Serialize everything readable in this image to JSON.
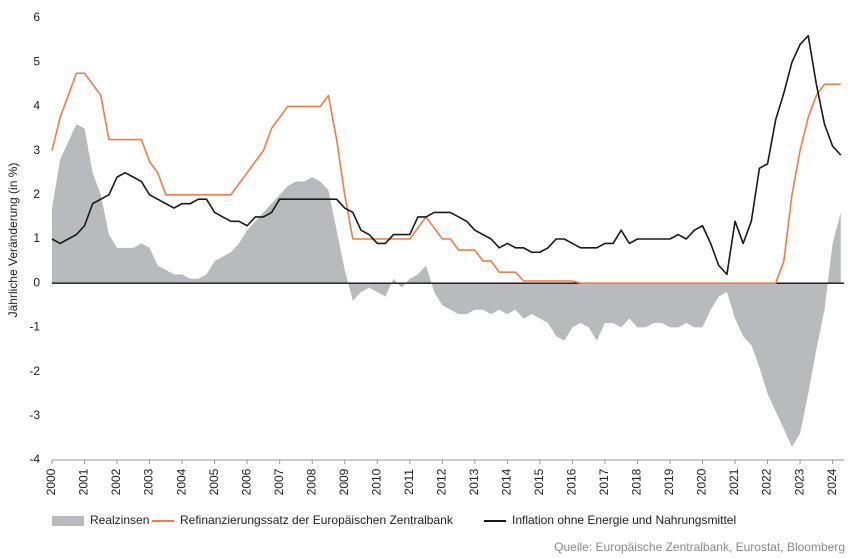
{
  "chart_data": {
    "type": "line",
    "y_label": "Jährliche Veränderung (in %)",
    "source": "Quelle: Europäische Zentralbank, Eurostat, Bloomberg",
    "x": [
      2000,
      2000.25,
      2000.5,
      2000.75,
      2001,
      2001.25,
      2001.5,
      2001.75,
      2002,
      2002.25,
      2002.5,
      2002.75,
      2003,
      2003.25,
      2003.5,
      2003.75,
      2004,
      2004.25,
      2004.5,
      2004.75,
      2005,
      2005.25,
      2005.5,
      2005.75,
      2006,
      2006.25,
      2006.5,
      2006.75,
      2007,
      2007.25,
      2007.5,
      2007.75,
      2008,
      2008.25,
      2008.5,
      2008.75,
      2009,
      2009.25,
      2009.5,
      2009.75,
      2010,
      2010.25,
      2010.5,
      2010.75,
      2011,
      2011.25,
      2011.5,
      2011.75,
      2012,
      2012.25,
      2012.5,
      2012.75,
      2013,
      2013.25,
      2013.5,
      2013.75,
      2014,
      2014.25,
      2014.5,
      2014.75,
      2015,
      2015.25,
      2015.5,
      2015.75,
      2016,
      2016.25,
      2016.5,
      2016.75,
      2017,
      2017.25,
      2017.5,
      2017.75,
      2018,
      2018.25,
      2018.5,
      2018.75,
      2019,
      2019.25,
      2019.5,
      2019.75,
      2020,
      2020.25,
      2020.5,
      2020.75,
      2021,
      2021.25,
      2021.5,
      2021.75,
      2022,
      2022.25,
      2022.5,
      2022.75,
      2023,
      2023.25,
      2023.5,
      2023.75,
      2024,
      2024.25
    ],
    "series": [
      {
        "name": "Realzinsen",
        "kind": "area",
        "color": "#b9babd",
        "values": [
          1.7,
          2.8,
          3.2,
          3.6,
          3.5,
          2.5,
          2.0,
          1.1,
          0.8,
          0.8,
          0.8,
          0.9,
          0.8,
          0.4,
          0.3,
          0.2,
          0.2,
          0.1,
          0.1,
          0.2,
          0.5,
          0.6,
          0.7,
          0.9,
          1.2,
          1.4,
          1.6,
          1.8,
          2.0,
          2.2,
          2.3,
          2.3,
          2.4,
          2.3,
          2.1,
          1.2,
          0.3,
          -0.4,
          -0.2,
          -0.1,
          -0.2,
          -0.3,
          0.1,
          -0.1,
          0.1,
          0.2,
          0.4,
          -0.2,
          -0.5,
          -0.6,
          -0.7,
          -0.7,
          -0.6,
          -0.6,
          -0.7,
          -0.6,
          -0.7,
          -0.6,
          -0.8,
          -0.7,
          -0.8,
          -0.9,
          -1.2,
          -1.3,
          -1.0,
          -0.9,
          -1.0,
          -1.3,
          -0.9,
          -0.9,
          -1.0,
          -0.8,
          -1.0,
          -1.0,
          -0.9,
          -0.9,
          -1.0,
          -1.0,
          -0.9,
          -1.0,
          -1.0,
          -0.6,
          -0.3,
          -0.2,
          -0.8,
          -1.2,
          -1.4,
          -1.9,
          -2.5,
          -2.9,
          -3.3,
          -3.7,
          -3.4,
          -2.5,
          -1.5,
          -0.6,
          0.9,
          1.6
        ]
      },
      {
        "name": "Refinanzierungssatz der Europäischen Zentralbank",
        "kind": "line",
        "color": "#f07d45",
        "values": [
          3.0,
          3.75,
          4.25,
          4.75,
          4.75,
          4.5,
          4.25,
          3.25,
          3.25,
          3.25,
          3.25,
          3.25,
          2.75,
          2.5,
          2.0,
          2.0,
          2.0,
          2.0,
          2.0,
          2.0,
          2.0,
          2.0,
          2.0,
          2.25,
          2.5,
          2.75,
          3.0,
          3.5,
          3.75,
          4.0,
          4.0,
          4.0,
          4.0,
          4.0,
          4.25,
          3.25,
          2.0,
          1.0,
          1.0,
          1.0,
          1.0,
          1.0,
          1.0,
          1.0,
          1.0,
          1.25,
          1.5,
          1.25,
          1.0,
          1.0,
          0.75,
          0.75,
          0.75,
          0.5,
          0.5,
          0.25,
          0.25,
          0.25,
          0.05,
          0.05,
          0.05,
          0.05,
          0.05,
          0.05,
          0.05,
          0,
          0,
          0,
          0,
          0,
          0,
          0,
          0,
          0,
          0,
          0,
          0,
          0,
          0,
          0,
          0,
          0,
          0,
          0,
          0,
          0,
          0,
          0,
          0,
          0,
          0.5,
          2.0,
          3.0,
          3.75,
          4.25,
          4.5,
          4.5,
          4.5
        ]
      },
      {
        "name": "Inflation ohne Energie und Nahrungsmittel",
        "kind": "line",
        "color": "#1a1a1a",
        "values": [
          1.0,
          0.9,
          1.0,
          1.1,
          1.3,
          1.8,
          1.9,
          2.0,
          2.4,
          2.5,
          2.4,
          2.3,
          2.0,
          1.9,
          1.8,
          1.7,
          1.8,
          1.8,
          1.9,
          1.9,
          1.6,
          1.5,
          1.4,
          1.4,
          1.3,
          1.5,
          1.5,
          1.6,
          1.9,
          1.9,
          1.9,
          1.9,
          1.9,
          1.9,
          1.9,
          1.9,
          1.7,
          1.6,
          1.2,
          1.1,
          0.9,
          0.9,
          1.1,
          1.1,
          1.1,
          1.5,
          1.5,
          1.6,
          1.6,
          1.6,
          1.5,
          1.4,
          1.2,
          1.1,
          1.0,
          0.8,
          0.9,
          0.8,
          0.8,
          0.7,
          0.7,
          0.8,
          1.0,
          1.0,
          0.9,
          0.8,
          0.8,
          0.8,
          0.9,
          0.9,
          1.2,
          0.9,
          1.0,
          1.0,
          1.0,
          1.0,
          1.0,
          1.1,
          1.0,
          1.2,
          1.3,
          0.9,
          0.4,
          0.2,
          1.4,
          0.9,
          1.4,
          2.6,
          2.7,
          3.7,
          4.3,
          5.0,
          5.4,
          5.6,
          4.5,
          3.6,
          3.1,
          2.9
        ]
      }
    ],
    "xlim": [
      2000,
      2024.35
    ],
    "xticks": [
      2000,
      2001,
      2002,
      2003,
      2004,
      2005,
      2006,
      2007,
      2008,
      2009,
      2010,
      2011,
      2012,
      2013,
      2014,
      2015,
      2016,
      2017,
      2018,
      2019,
      2020,
      2021,
      2022,
      2023,
      2024
    ],
    "ylim": [
      -4,
      6
    ],
    "yticks": [
      -4,
      -3,
      -2,
      -1,
      0,
      1,
      2,
      3,
      4,
      5,
      6
    ],
    "zero_line": true
  }
}
